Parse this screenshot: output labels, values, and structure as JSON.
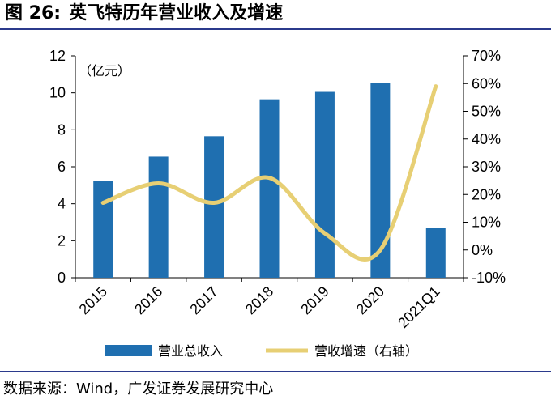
{
  "figure": {
    "number": "图 26:",
    "title": "英飞特历年营业收入及增速",
    "source": "数据来源：Wind，广发证券发展研究中心"
  },
  "chart_data": {
    "type": "bar",
    "categories": [
      "2015",
      "2016",
      "2017",
      "2018",
      "2019",
      "2020",
      "2021Q1"
    ],
    "unit_label": "（亿元）",
    "ylim": [
      0,
      12
    ],
    "yticks": [
      "0",
      "2",
      "4",
      "6",
      "8",
      "10",
      "12"
    ],
    "y2lim": [
      -10,
      70
    ],
    "y2ticks": [
      "-10%",
      "0%",
      "10%",
      "20%",
      "30%",
      "40%",
      "50%",
      "60%",
      "70%"
    ],
    "series": [
      {
        "name": "营业总收入",
        "type": "bar",
        "axis": "left",
        "color": "#1f6fb0",
        "values": [
          5.25,
          6.55,
          7.65,
          9.65,
          10.05,
          10.55,
          2.7
        ]
      },
      {
        "name": "营收增速（右轴）",
        "type": "line",
        "axis": "right",
        "color": "#e7cf74",
        "values": [
          17,
          24,
          17,
          26,
          6,
          0,
          59
        ]
      }
    ],
    "grid": false,
    "legend_position": "bottom"
  }
}
